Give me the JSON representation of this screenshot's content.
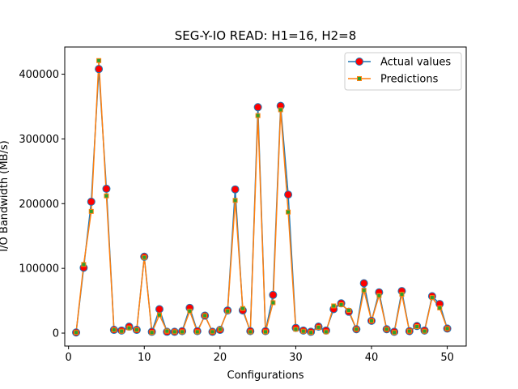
{
  "chart_data": {
    "type": "line",
    "title": "SEG-Y-IO READ: H1=16, H2=8",
    "xlabel": "Configurations",
    "ylabel": "I/O Bandwidth (MB/s)",
    "xlim": [
      -0.5,
      52.5
    ],
    "ylim": [
      -20000,
      442000
    ],
    "xticks": [
      0,
      10,
      20,
      30,
      40,
      50
    ],
    "yticks": [
      0,
      100000,
      200000,
      300000,
      400000
    ],
    "grid": false,
    "legend_position": "top-right",
    "x": [
      1,
      2,
      3,
      4,
      5,
      6,
      7,
      8,
      9,
      10,
      11,
      12,
      13,
      14,
      15,
      16,
      17,
      18,
      19,
      20,
      21,
      22,
      23,
      24,
      25,
      26,
      27,
      28,
      29,
      30,
      31,
      32,
      33,
      34,
      35,
      36,
      37,
      38,
      39,
      40,
      41,
      42,
      43,
      44,
      45,
      46,
      47,
      48,
      49,
      50
    ],
    "series": [
      {
        "name": "Actual values",
        "color": "#1f77b4",
        "marker": "circle",
        "marker_color": "#ff0000",
        "values": [
          1000,
          101000,
          203000,
          408000,
          223000,
          5000,
          4000,
          10000,
          5000,
          118000,
          2000,
          37000,
          2000,
          2000,
          3000,
          39000,
          3000,
          27000,
          2000,
          5000,
          35000,
          222000,
          35000,
          3000,
          349000,
          3000,
          59000,
          351000,
          214000,
          8000,
          4000,
          2000,
          10000,
          4000,
          37000,
          46000,
          33000,
          6000,
          77000,
          19000,
          63000,
          6000,
          2000,
          65000,
          3000,
          11000,
          4000,
          57000,
          45000,
          7000
        ]
      },
      {
        "name": "Predictions",
        "color": "#ff7f0e",
        "marker": "square",
        "marker_color": "#2ca02c",
        "values": [
          1000,
          106000,
          188000,
          421000,
          212000,
          5000,
          3000,
          8000,
          5000,
          117000,
          1000,
          28000,
          3000,
          2000,
          2000,
          34000,
          2000,
          27000,
          2000,
          6000,
          34000,
          205000,
          38000,
          2000,
          336000,
          2000,
          47000,
          345000,
          187000,
          6000,
          3000,
          1000,
          9000,
          2000,
          42000,
          44000,
          35000,
          6000,
          66000,
          19000,
          58000,
          6000,
          1000,
          60000,
          3000,
          10000,
          3000,
          55000,
          39000,
          7000
        ]
      }
    ]
  }
}
